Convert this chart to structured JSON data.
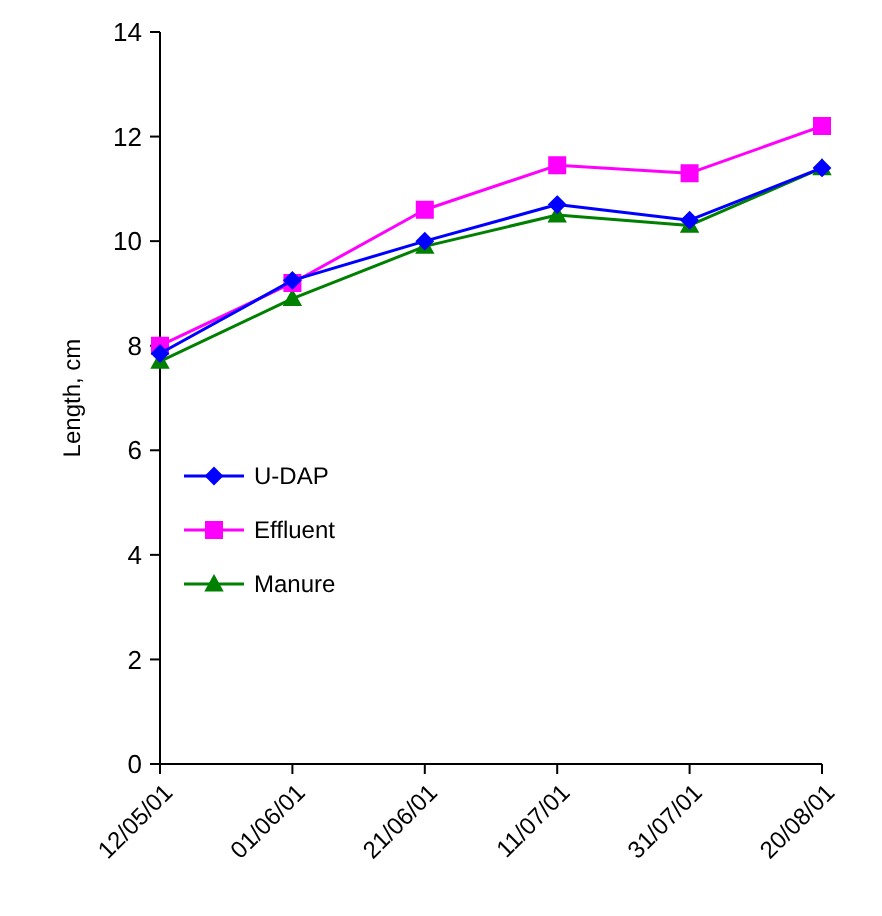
{
  "chart_data": {
    "type": "line",
    "ylabel": "Length, cm",
    "categories": [
      "12/05/01",
      "01/06/01",
      "21/06/01",
      "11/07/01",
      "31/07/01",
      "20/08/01"
    ],
    "series": [
      {
        "name": "U-DAP",
        "color": "#0000ff",
        "marker": "diamond",
        "values": [
          7.85,
          9.25,
          10.0,
          10.7,
          10.4,
          11.4
        ]
      },
      {
        "name": "Effluent",
        "color": "#ff00ff",
        "marker": "square",
        "values": [
          8.0,
          9.2,
          10.6,
          11.45,
          11.3,
          12.2
        ]
      },
      {
        "name": "Manure",
        "color": "#008000",
        "marker": "triangle",
        "values": [
          7.7,
          8.9,
          9.9,
          10.5,
          10.3,
          11.4
        ]
      }
    ],
    "ylim": [
      0,
      14
    ],
    "yticks": [
      0,
      2,
      4,
      6,
      8,
      10,
      12,
      14
    ],
    "grid": false,
    "legend": "left"
  }
}
